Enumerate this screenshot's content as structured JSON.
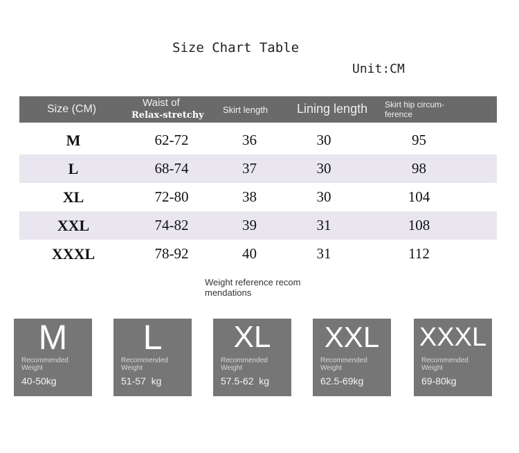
{
  "title": "Size Chart Table",
  "unit": "Unit:CM",
  "table": {
    "headers": {
      "size": "Size (CM)",
      "waist_line1": "Waist of",
      "waist_line2": "Relax-stretchy",
      "skirt": "Skirt length",
      "lining": "Lining length",
      "hip": "Skirt hip circum-ference"
    },
    "rows": [
      {
        "size": "M",
        "waist": "62-72",
        "skirt": "36",
        "lining": "30",
        "hip": "95"
      },
      {
        "size": "L",
        "waist": "68-74",
        "skirt": "37",
        "lining": "30",
        "hip": "98"
      },
      {
        "size": "XL",
        "waist": "72-80",
        "skirt": "38",
        "lining": "30",
        "hip": "104"
      },
      {
        "size": "XXL",
        "waist": "74-82",
        "skirt": "39",
        "lining": "31",
        "hip": "108"
      },
      {
        "size": "XXXL",
        "waist": "78-92",
        "skirt": "40",
        "lining": "31",
        "hip": "112"
      }
    ]
  },
  "weight_reference": "Weight reference recom mendations",
  "weights": [
    {
      "size": "M",
      "label": "Recommended Weight",
      "range": "40-50kg"
    },
    {
      "size": "L",
      "label": "Recommended Weight",
      "range": "51-57  kg"
    },
    {
      "size": "XL",
      "label": "Recommended Weight",
      "range": "57.5-62  kg"
    },
    {
      "size": "XXL",
      "label": "Recommended Weight",
      "range": "62.5-69kg"
    },
    {
      "size": "XXXL",
      "label": "Recommended Weight",
      "range": "69-80kg"
    }
  ],
  "colors": {
    "header_bg": "#6b6a6b",
    "alt_row": "#e9e6ef",
    "box_bg": "#777677"
  }
}
